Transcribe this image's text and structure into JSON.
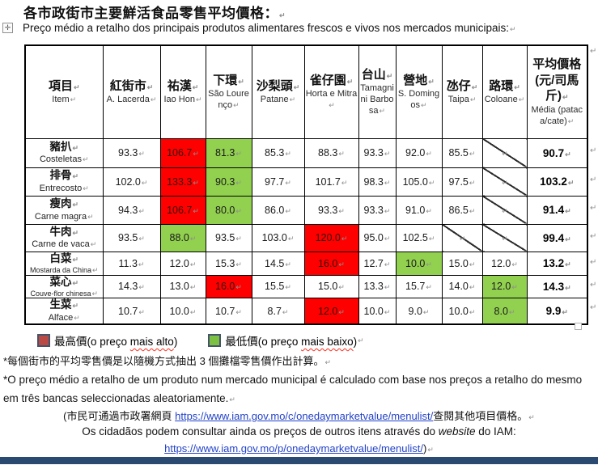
{
  "page": {
    "title_zh": "各市政街市主要鮮活食品零售平均價格：",
    "subtitle_pt": "Preço médio a retalho dos principais produtos alimentares frescos e vivos nos mercados municipais:",
    "paragraph_mark": "↵",
    "move_handle_glyph": "✛"
  },
  "colors": {
    "highlight_max": "#fe0000",
    "highlight_min": "#92d050",
    "legend_border": "#44546a",
    "legend_max_fill": "#bc4a44",
    "legend_min_fill": "#7dc142",
    "link_blue": "#2342c8",
    "bottom_bar": "#2a4a71"
  },
  "table": {
    "item_header": {
      "zh": "項目",
      "pt": "Item"
    },
    "markets": [
      {
        "zh": "紅街市",
        "pt": "A. Lacerda"
      },
      {
        "zh": "祐漢",
        "pt": "Iao Hon"
      },
      {
        "zh": "下環",
        "pt": "São Lourenço"
      },
      {
        "zh": "沙梨頭",
        "pt": "Patane"
      },
      {
        "zh": "雀仔園",
        "pt": "Horta e Mitra"
      },
      {
        "zh": "台山",
        "pt": "Tamagnini Barbosa"
      },
      {
        "zh": "營地",
        "pt": "S. Domingos"
      },
      {
        "zh": "氹仔",
        "pt": "Taipa"
      },
      {
        "zh": "路環",
        "pt": "Coloane"
      }
    ],
    "avg_header": {
      "zh": "平均價格(元/司馬斤)",
      "pt": "Média (pataca/cate)"
    },
    "rows": [
      {
        "zh": "豬扒",
        "pt": "Costeletas",
        "small_pt": false,
        "cells": [
          {
            "v": "93.3"
          },
          {
            "v": "106.7",
            "hl": "max"
          },
          {
            "v": "81.3",
            "hl": "min"
          },
          {
            "v": "85.3"
          },
          {
            "v": "88.3"
          },
          {
            "v": "93.3"
          },
          {
            "v": "92.0"
          },
          {
            "v": "85.5"
          },
          {
            "diag": true
          }
        ],
        "avg": "90.7"
      },
      {
        "zh": "排骨",
        "pt": "Entrecosto",
        "small_pt": false,
        "cells": [
          {
            "v": "102.0"
          },
          {
            "v": "133.3",
            "hl": "max"
          },
          {
            "v": "90.3",
            "hl": "min"
          },
          {
            "v": "97.7"
          },
          {
            "v": "101.7"
          },
          {
            "v": "98.3"
          },
          {
            "v": "105.0"
          },
          {
            "v": "97.5"
          },
          {
            "diag": true
          }
        ],
        "avg": "103.2"
      },
      {
        "zh": "瘦肉",
        "pt": "Carne magra",
        "small_pt": false,
        "cells": [
          {
            "v": "94.3"
          },
          {
            "v": "106.7",
            "hl": "max"
          },
          {
            "v": "80.0",
            "hl": "min"
          },
          {
            "v": "86.0"
          },
          {
            "v": "93.3"
          },
          {
            "v": "93.3"
          },
          {
            "v": "91.0"
          },
          {
            "v": "86.5"
          },
          {
            "diag": true
          }
        ],
        "avg": "91.4"
      },
      {
        "zh": "牛肉",
        "pt": "Carne de vaca",
        "small_pt": false,
        "cells": [
          {
            "v": "93.5"
          },
          {
            "v": "88.0",
            "hl": "min"
          },
          {
            "v": "93.5"
          },
          {
            "v": "103.0"
          },
          {
            "v": "120.0",
            "hl": "max"
          },
          {
            "v": "95.0"
          },
          {
            "v": "102.5"
          },
          {
            "diag": true
          },
          {
            "diag": true
          }
        ],
        "avg": "99.4"
      },
      {
        "zh": "白菜",
        "pt": "Mostarda da China",
        "small_pt": true,
        "cells": [
          {
            "v": "11.3"
          },
          {
            "v": "12.0"
          },
          {
            "v": "15.3"
          },
          {
            "v": "14.5"
          },
          {
            "v": "16.0",
            "hl": "max"
          },
          {
            "v": "12.7"
          },
          {
            "v": "10.0",
            "hl": "min"
          },
          {
            "v": "15.0"
          },
          {
            "v": "12.0"
          }
        ],
        "avg": "13.2"
      },
      {
        "zh": "菜心",
        "pt": "Couve-flor chinesa",
        "small_pt": true,
        "cells": [
          {
            "v": "14.3"
          },
          {
            "v": "13.0"
          },
          {
            "v": "16.0",
            "hl": "max"
          },
          {
            "v": "15.5"
          },
          {
            "v": "15.0"
          },
          {
            "v": "13.3"
          },
          {
            "v": "15.7"
          },
          {
            "v": "14.0"
          },
          {
            "v": "12.0",
            "hl": "min"
          }
        ],
        "avg": "14.3"
      },
      {
        "zh": "生菜",
        "pt": "Alface",
        "small_pt": false,
        "cells": [
          {
            "v": "10.7"
          },
          {
            "v": "10.0"
          },
          {
            "v": "10.7"
          },
          {
            "v": "8.7"
          },
          {
            "v": "12.0",
            "hl": "max"
          },
          {
            "v": "10.0"
          },
          {
            "v": "9.0"
          },
          {
            "v": "10.0"
          },
          {
            "v": "8.0",
            "hl": "min"
          }
        ],
        "avg": "9.9"
      }
    ]
  },
  "legend": {
    "max_pre": "最高價(o preço ",
    "max_wavy": "mais alto",
    "max_close": ")",
    "min_pre": "最低價(o preço ",
    "min_wavy": "mais baixo",
    "min_close": ")"
  },
  "footnotes": {
    "zh": "*每個街市的平均零售價是以隨機方式抽出 3 個攤檔零售價作出計算。",
    "pt": "*O preço médio a retalho de um produto num mercado municipal é calculado com base nos preços a retalho do mesmo em três bancas seleccionadas aleatoriamente.",
    "consult_zh_pre": "(市民可通過市政署網頁 ",
    "consult_link1": "https://www.iam.gov.mo/c/onedaymarketvalue/menulist/",
    "consult_zh_post": "查閱其他項目價格。",
    "consult_pt_pre": "Os cidadãos podem consultar ainda os preços de outros itens através do ",
    "consult_pt_italic": "website",
    "consult_pt_post": " do IAM:",
    "consult_link2": "https://www.iam.gov.mo/p/onedaymarketvalue/menulist/",
    "consult_close": ")"
  }
}
